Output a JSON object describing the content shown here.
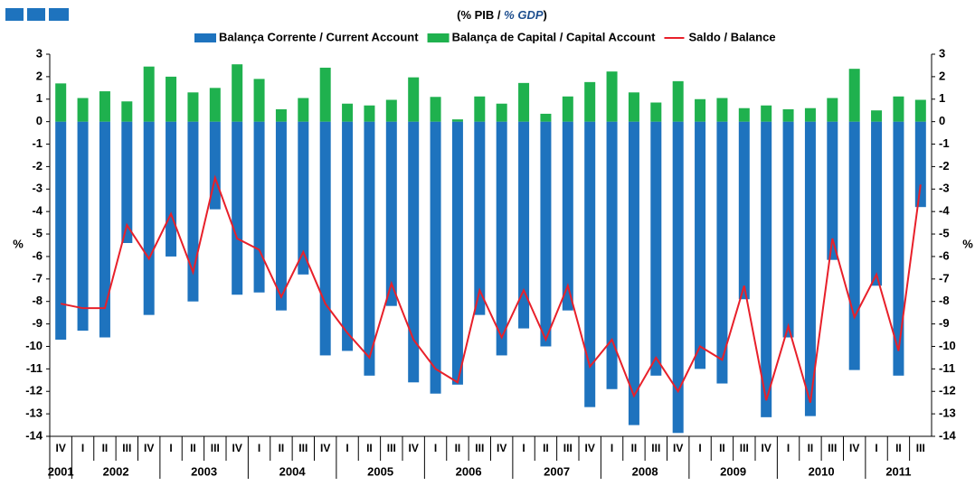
{
  "chart_data": {
    "type": "bar",
    "subtitle": [
      "(% PIB / ",
      "% GDP",
      ")"
    ],
    "ylabel": "%",
    "y2label": "%",
    "categories": [
      "IV",
      "I",
      "II",
      "III",
      "IV",
      "I",
      "II",
      "III",
      "IV",
      "I",
      "II",
      "III",
      "IV",
      "I",
      "II",
      "III",
      "IV",
      "I",
      "II",
      "III",
      "IV",
      "I",
      "II",
      "III",
      "IV",
      "I",
      "II",
      "III",
      "IV",
      "I",
      "II",
      "III",
      "IV",
      "I",
      "II",
      "III",
      "IV",
      "I",
      "II",
      "III"
    ],
    "years": [
      "2001",
      "2002",
      "2003",
      "2004",
      "2005",
      "2006",
      "2007",
      "2008",
      "2009",
      "2010",
      "2011"
    ],
    "series": [
      {
        "name": "Balança Corrente / Current Account",
        "color": "#1e73be",
        "type": "bar",
        "values": [
          -9.7,
          -9.3,
          -9.6,
          -5.4,
          -8.6,
          -6.0,
          -8.0,
          -3.9,
          -7.7,
          -7.6,
          -8.4,
          -6.8,
          -10.4,
          -10.2,
          -11.3,
          -8.2,
          -11.6,
          -12.1,
          -11.7,
          -8.6,
          -10.4,
          -9.2,
          -10.0,
          -8.4,
          -12.7,
          -11.9,
          -13.5,
          -11.3,
          -13.85,
          -11.0,
          -11.65,
          -7.9,
          -13.15,
          -9.6,
          -13.1,
          -6.15,
          -11.05,
          -7.3,
          -11.3,
          -3.8
        ]
      },
      {
        "name": "Balança de Capital / Capital Account",
        "color": "#1fb14e",
        "type": "bar",
        "values": [
          1.7,
          1.05,
          1.35,
          0.9,
          2.45,
          2.0,
          1.3,
          1.5,
          2.55,
          1.9,
          0.55,
          1.05,
          2.4,
          0.8,
          0.72,
          0.97,
          1.97,
          1.1,
          0.1,
          1.12,
          0.8,
          1.72,
          0.35,
          1.12,
          1.76,
          2.23,
          1.3,
          0.85,
          1.8,
          1.0,
          1.05,
          0.6,
          0.72,
          0.55,
          0.6,
          1.05,
          2.35,
          0.5,
          1.12,
          0.97
        ]
      },
      {
        "name": "Saldo / Balance",
        "color": "#e8202a",
        "type": "line",
        "values": [
          -8.1,
          -8.3,
          -8.3,
          -4.6,
          -6.1,
          -4.1,
          -6.7,
          -2.5,
          -5.2,
          -5.7,
          -7.8,
          -5.8,
          -8.1,
          -9.4,
          -10.5,
          -7.2,
          -9.7,
          -11.0,
          -11.6,
          -7.5,
          -9.6,
          -7.5,
          -9.7,
          -7.3,
          -10.9,
          -9.7,
          -12.2,
          -10.5,
          -12.0,
          -10.0,
          -10.6,
          -7.3,
          -12.4,
          -9.1,
          -12.5,
          -5.2,
          -8.7,
          -6.8,
          -10.2,
          -2.8
        ]
      }
    ],
    "ylim": [
      -14,
      3
    ],
    "yticks": [
      -14,
      -13,
      -12,
      -11,
      -10,
      -9,
      -8,
      -7,
      -6,
      -5,
      -4,
      -3,
      -2,
      -1,
      0,
      1,
      2,
      3
    ],
    "y2lim": [
      -14,
      3
    ],
    "y2ticks": [
      -14,
      -13,
      -12,
      -11,
      -10,
      -9,
      -8,
      -7,
      -6,
      -5,
      -4,
      -3,
      -2,
      -1,
      0,
      1,
      2,
      3
    ],
    "grid": false
  }
}
